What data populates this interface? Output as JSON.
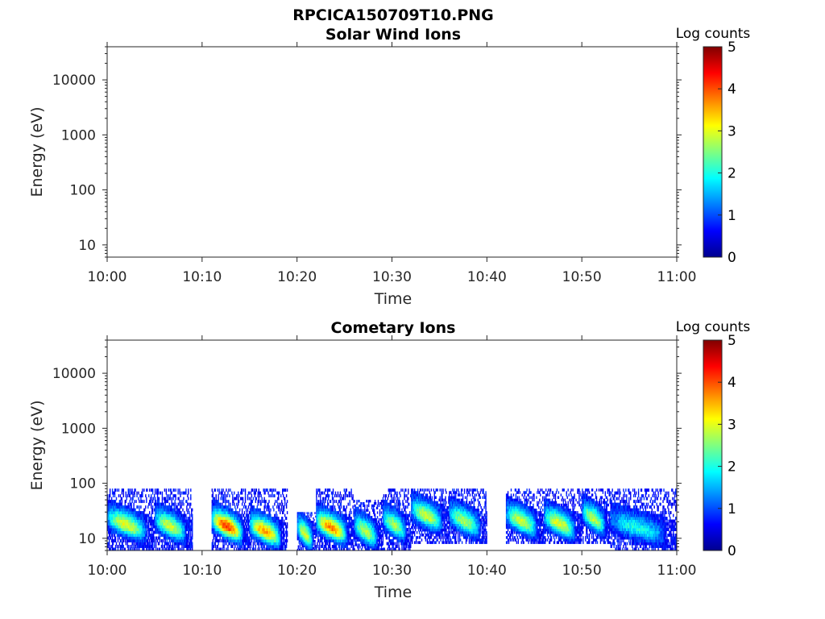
{
  "figure_title": "RPCICA150709T10.PNG",
  "chart_data": [
    {
      "type": "heatmap",
      "title": "Solar Wind Ions",
      "xlabel": "Time",
      "ylabel": "Energy (eV)",
      "x_ticks": [
        "10:00",
        "10:10",
        "10:20",
        "10:30",
        "10:40",
        "10:50",
        "11:00"
      ],
      "y_ticks": [
        "10",
        "100",
        "1000",
        "10000"
      ],
      "y_scale": "log",
      "y_range": [
        6,
        40000
      ],
      "colorbar": {
        "label": "Log counts",
        "ticks": [
          "0",
          "1",
          "2",
          "3",
          "4",
          "5"
        ],
        "range": [
          0,
          5
        ]
      },
      "grid": false,
      "bands": []
    },
    {
      "type": "heatmap",
      "title": "Cometary Ions",
      "xlabel": "Time",
      "ylabel": "Energy (eV)",
      "x_ticks": [
        "10:00",
        "10:10",
        "10:20",
        "10:30",
        "10:40",
        "10:50",
        "11:00"
      ],
      "y_ticks": [
        "10",
        "100",
        "1000",
        "10000"
      ],
      "y_scale": "log",
      "y_range": [
        6,
        40000
      ],
      "colorbar": {
        "label": "Log counts",
        "ticks": [
          "0",
          "1",
          "2",
          "3",
          "4",
          "5"
        ],
        "range": [
          0,
          5
        ]
      },
      "grid": false,
      "bands": [
        {
          "t0": 0,
          "t1": 5,
          "e_low": 6,
          "e_peak": 17,
          "e_high": 80,
          "peak": 2.4
        },
        {
          "t0": 5,
          "t1": 9,
          "e_low": 6,
          "e_peak": 16,
          "e_high": 80,
          "peak": 2.3
        },
        {
          "t0": 11,
          "t1": 15,
          "e_low": 6,
          "e_peak": 16,
          "e_high": 80,
          "peak": 3.5
        },
        {
          "t0": 15,
          "t1": 19,
          "e_low": 6,
          "e_peak": 13,
          "e_high": 80,
          "peak": 3.0
        },
        {
          "t0": 20,
          "t1": 22,
          "e_low": 6,
          "e_peak": 12,
          "e_high": 30,
          "peak": 2.4
        },
        {
          "t0": 22,
          "t1": 26,
          "e_low": 6,
          "e_peak": 15,
          "e_high": 80,
          "peak": 3.1
        },
        {
          "t0": 26,
          "t1": 29,
          "e_low": 6,
          "e_peak": 13,
          "e_high": 50,
          "peak": 2.2
        },
        {
          "t0": 29,
          "t1": 32,
          "e_low": 6,
          "e_peak": 17,
          "e_high": 80,
          "peak": 2.1
        },
        {
          "t0": 32,
          "t1": 36,
          "e_low": 8,
          "e_peak": 25,
          "e_high": 80,
          "peak": 2.3
        },
        {
          "t0": 36,
          "t1": 40,
          "e_low": 8,
          "e_peak": 20,
          "e_high": 80,
          "peak": 2.1
        },
        {
          "t0": 42,
          "t1": 46,
          "e_low": 8,
          "e_peak": 20,
          "e_high": 80,
          "peak": 2.3
        },
        {
          "t0": 46,
          "t1": 50,
          "e_low": 8,
          "e_peak": 18,
          "e_high": 80,
          "peak": 2.4
        },
        {
          "t0": 50,
          "t1": 53,
          "e_low": 8,
          "e_peak": 22,
          "e_high": 80,
          "peak": 2.2
        },
        {
          "t0": 53,
          "t1": 60,
          "e_low": 6,
          "e_peak": 15,
          "e_high": 80,
          "peak": 1.4
        }
      ]
    }
  ]
}
